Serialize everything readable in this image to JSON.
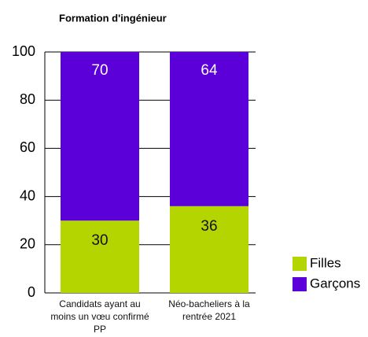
{
  "chart_data": {
    "type": "stacked_bar",
    "title": "Formation d'ingénieur",
    "categories": [
      "Candidats ayant au moins un vœu confirmé PP",
      "Néo-bacheliers à la rentrée 2021"
    ],
    "series": [
      {
        "name": "Filles",
        "color": "#b5d500",
        "values": [
          30,
          36
        ]
      },
      {
        "name": "Garçons",
        "color": "#5b00d9",
        "values": [
          70,
          64
        ]
      }
    ],
    "ylim": [
      0,
      100
    ],
    "yticks": [
      0,
      20,
      40,
      60,
      80,
      100
    ],
    "grid": true,
    "legend": "right"
  }
}
